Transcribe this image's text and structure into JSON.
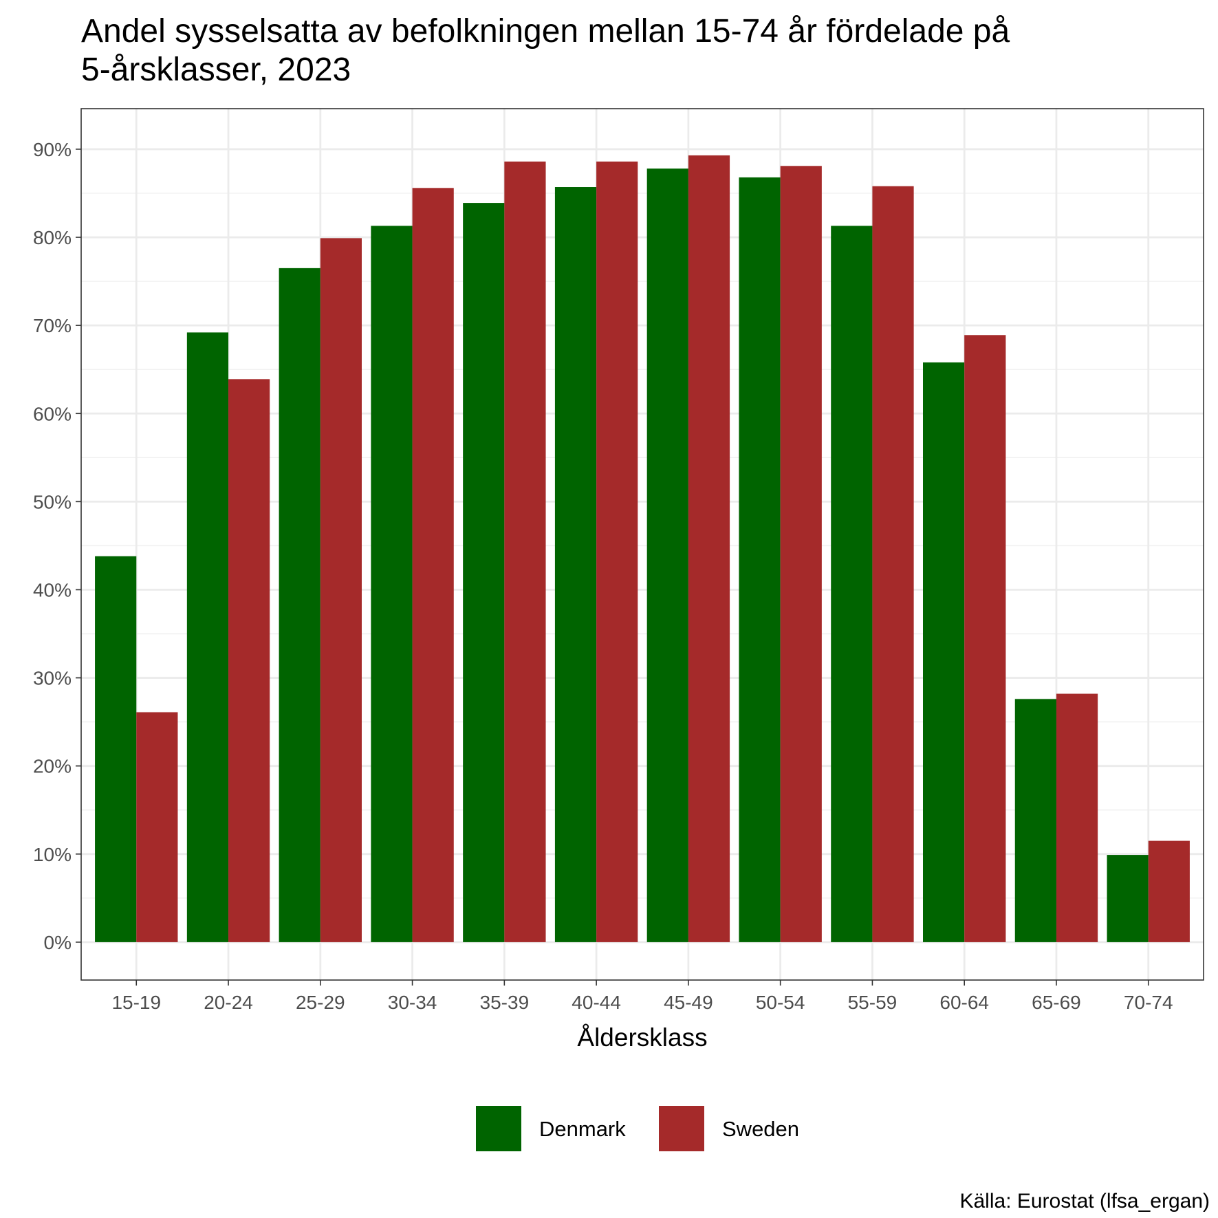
{
  "chart_data": {
    "type": "bar",
    "title": "Andel sysselsatta av befolkningen mellan 15-74 år fördelade på",
    "title_line2": "5-årsklasser, 2023",
    "xlabel": "Åldersklass",
    "ylabel": "",
    "categories": [
      "15-19",
      "20-24",
      "25-29",
      "30-34",
      "35-39",
      "40-44",
      "45-49",
      "50-54",
      "55-59",
      "60-64",
      "65-69",
      "70-74"
    ],
    "series": [
      {
        "name": "Denmark",
        "color": "#006400",
        "values": [
          43.8,
          69.2,
          76.5,
          81.3,
          83.9,
          85.7,
          87.8,
          86.8,
          81.3,
          65.8,
          27.6,
          9.9
        ]
      },
      {
        "name": "Sweden",
        "color": "#A52A2A",
        "values": [
          26.1,
          63.9,
          79.9,
          85.6,
          88.6,
          88.6,
          89.3,
          88.1,
          85.8,
          68.9,
          28.2,
          11.5
        ]
      }
    ],
    "ylim": [
      -4.3,
      94.6
    ],
    "y_ticks": [
      0,
      10,
      20,
      30,
      40,
      50,
      60,
      70,
      80,
      90
    ],
    "y_tick_labels": [
      "0%",
      "10%",
      "20%",
      "30%",
      "40%",
      "50%",
      "60%",
      "70%",
      "80%",
      "90%"
    ],
    "grid": true,
    "legend_position": "bottom",
    "caption": "Källa: Eurostat (lfsa_ergan)"
  }
}
